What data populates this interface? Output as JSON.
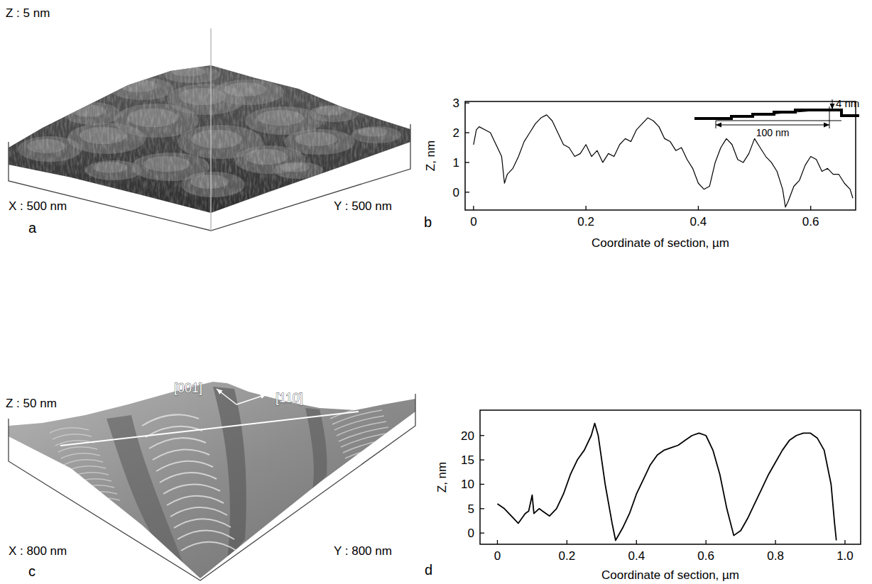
{
  "chart_data": [
    {
      "type": "line",
      "title": "b",
      "x_label": "Coordinate of section, µm",
      "y_label": "Z, nm",
      "color": "#000000",
      "annotations": [
        "4 nm",
        "100 nm"
      ],
      "x": [
        0,
        0.005,
        0.01,
        0.02,
        0.03,
        0.04,
        0.05,
        0.055,
        0.06,
        0.07,
        0.08,
        0.09,
        0.1,
        0.11,
        0.12,
        0.13,
        0.14,
        0.15,
        0.16,
        0.17,
        0.18,
        0.19,
        0.2,
        0.21,
        0.22,
        0.23,
        0.24,
        0.25,
        0.26,
        0.27,
        0.28,
        0.29,
        0.3,
        0.31,
        0.32,
        0.33,
        0.34,
        0.35,
        0.36,
        0.37,
        0.38,
        0.39,
        0.4,
        0.41,
        0.42,
        0.43,
        0.44,
        0.45,
        0.46,
        0.47,
        0.48,
        0.49,
        0.5,
        0.51,
        0.52,
        0.53,
        0.54,
        0.55,
        0.555,
        0.56,
        0.57,
        0.58,
        0.59,
        0.6,
        0.61,
        0.62,
        0.63,
        0.64,
        0.65,
        0.66,
        0.67,
        0.675
      ],
      "values": [
        1.6,
        2.1,
        2.2,
        2.1,
        2.0,
        1.6,
        1.2,
        0.3,
        0.6,
        0.8,
        1.2,
        1.7,
        2.0,
        2.3,
        2.5,
        2.6,
        2.4,
        2.0,
        1.6,
        1.5,
        1.2,
        1.3,
        1.6,
        1.2,
        1.4,
        1.0,
        1.3,
        1.2,
        1.6,
        1.8,
        1.7,
        2.1,
        2.3,
        2.5,
        2.4,
        2.2,
        1.8,
        1.7,
        1.4,
        1.5,
        1.1,
        0.8,
        0.3,
        0.1,
        0.2,
        1.0,
        1.5,
        1.8,
        1.6,
        1.1,
        1.0,
        1.3,
        1.8,
        1.5,
        1.2,
        1.0,
        0.7,
        0.1,
        -0.5,
        -0.3,
        0.2,
        0.4,
        0.9,
        1.2,
        1.1,
        0.7,
        0.8,
        0.6,
        0.6,
        0.3,
        0.1,
        -0.2
      ],
      "xlim": [
        -0.015,
        0.68
      ],
      "xticks": [
        0,
        0.2,
        0.4,
        0.6
      ],
      "ylim": [
        -0.6,
        3.05
      ],
      "yticks": [
        0,
        1,
        2,
        3
      ]
    },
    {
      "type": "line",
      "title": "d",
      "x_label": "Coordinate of section, µm",
      "y_label": "Z, nm",
      "color": "#000000",
      "x": [
        0,
        0.02,
        0.04,
        0.06,
        0.08,
        0.09,
        0.1,
        0.105,
        0.12,
        0.14,
        0.15,
        0.17,
        0.19,
        0.21,
        0.23,
        0.25,
        0.27,
        0.28,
        0.29,
        0.31,
        0.33,
        0.34,
        0.36,
        0.38,
        0.4,
        0.42,
        0.44,
        0.46,
        0.48,
        0.5,
        0.52,
        0.54,
        0.56,
        0.58,
        0.6,
        0.62,
        0.64,
        0.66,
        0.68,
        0.7,
        0.72,
        0.74,
        0.76,
        0.78,
        0.8,
        0.82,
        0.84,
        0.86,
        0.88,
        0.9,
        0.92,
        0.94,
        0.96,
        0.97,
        0.975
      ],
      "values": [
        6,
        5,
        3.5,
        2,
        4,
        4.5,
        7.8,
        4,
        5,
        4,
        3.5,
        5,
        8,
        12,
        15,
        17,
        20,
        22.5,
        20,
        10,
        2,
        -1.5,
        1,
        4,
        8,
        11,
        14,
        16,
        17,
        17.5,
        18,
        19,
        20,
        20.5,
        20,
        17,
        12,
        5,
        -0.5,
        0.5,
        3,
        6,
        9,
        12,
        14.5,
        17,
        19,
        20,
        20.5,
        20.5,
        19.5,
        17,
        10,
        2,
        -1.5
      ],
      "xlim": [
        -0.05,
        1.045
      ],
      "xticks": [
        0,
        0.2,
        0.4,
        0.6,
        0.8,
        {
          "value": 1,
          "label": "1.0"
        }
      ],
      "ylim": [
        -2.3,
        25.2
      ],
      "yticks": [
        0,
        5,
        10,
        15,
        20
      ]
    }
  ],
  "images": [
    {
      "panel": "a",
      "z_label": "Z : 5 nm",
      "x_label": "X : 500 nm",
      "y_label": "Y : 500 nm"
    },
    {
      "panel": "c",
      "z_label": "Z : 50 nm",
      "x_label": "X : 800 nm",
      "y_label": "Y : 800 nm",
      "directions": [
        "[001]",
        "[110]"
      ]
    }
  ]
}
